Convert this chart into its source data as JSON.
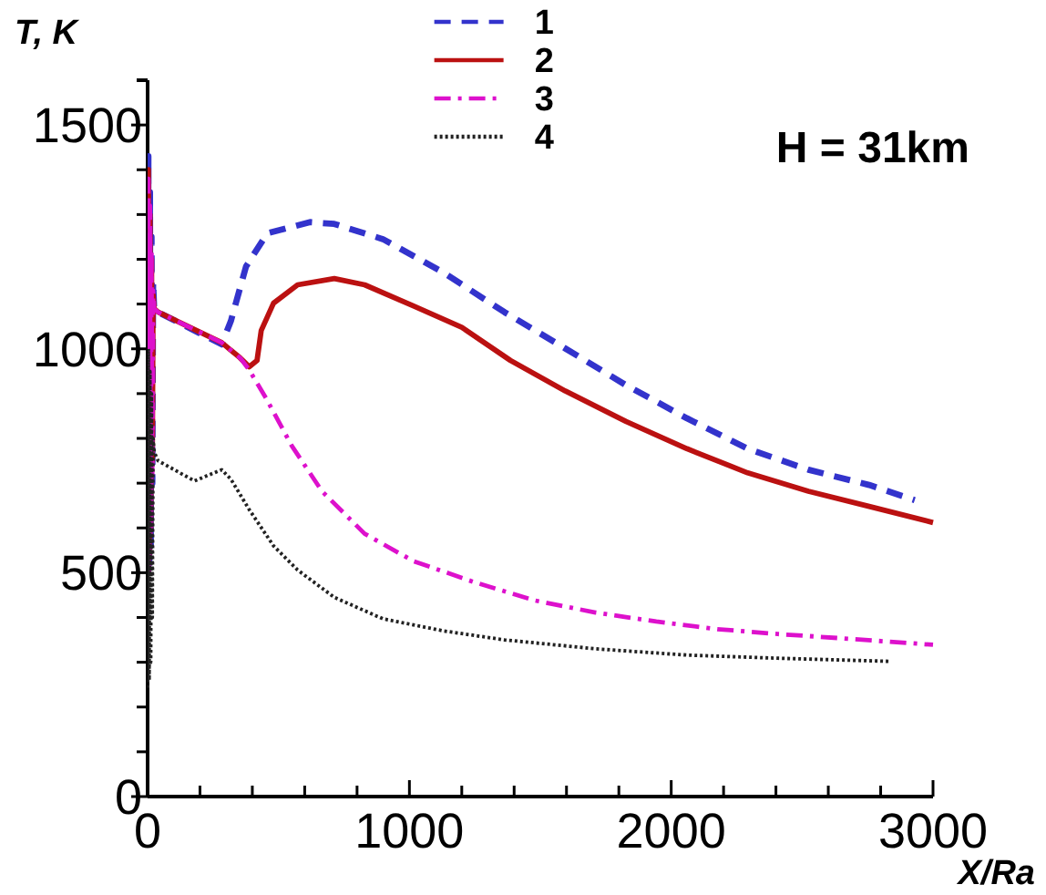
{
  "chart_data": {
    "type": "line",
    "xlabel": "X/Ra",
    "ylabel": "T, K",
    "annotations": [
      "H = 31km"
    ],
    "xlim": [
      0,
      3000
    ],
    "ylim": [
      0,
      1600
    ],
    "xticks": [
      0,
      {
        "value": 200,
        "label": null
      },
      {
        "value": 400,
        "label": null
      },
      {
        "value": 600,
        "label": null
      },
      {
        "value": 800,
        "label": null
      },
      1000,
      {
        "value": 1200,
        "label": null
      },
      {
        "value": 1400,
        "label": null
      },
      {
        "value": 1600,
        "label": null
      },
      {
        "value": 1800,
        "label": null
      },
      2000,
      {
        "value": 2200,
        "label": null
      },
      {
        "value": 2400,
        "label": null
      },
      {
        "value": 2600,
        "label": null
      },
      {
        "value": 2800,
        "label": null
      },
      3000
    ],
    "yticks": [
      0,
      {
        "value": 100,
        "label": null
      },
      {
        "value": 200,
        "label": null
      },
      {
        "value": 300,
        "label": null
      },
      {
        "value": 400,
        "label": null
      },
      500,
      {
        "value": 600,
        "label": null
      },
      {
        "value": 700,
        "label": null
      },
      {
        "value": 800,
        "label": null
      },
      {
        "value": 900,
        "label": null
      },
      1000,
      {
        "value": 1100,
        "label": null
      },
      {
        "value": 1200,
        "label": null
      },
      {
        "value": 1300,
        "label": null
      },
      {
        "value": 1400,
        "label": null
      },
      1500
    ],
    "grid": false,
    "legend": "top",
    "marker": "none",
    "series": [
      {
        "name": "1",
        "color": "#3333cc",
        "line_style": "dashed",
        "x": [
          0,
          3,
          6,
          9,
          12,
          15,
          18,
          21,
          25,
          40,
          283,
          318,
          376,
          457,
          620,
          713,
          899,
          1131,
          1363,
          1595,
          1827,
          2060,
          2292,
          2524,
          2756,
          2930
        ],
        "values": [
          600,
          1430,
          520,
          1350,
          560,
          1250,
          700,
          1150,
          1090,
          1082,
          1010,
          1062,
          1184,
          1258,
          1283,
          1279,
          1245,
          1170,
          1082,
          1001,
          919,
          845,
          777,
          730,
          696,
          662
        ]
      },
      {
        "name": "2",
        "color": "#bb1111",
        "line_style": "solid",
        "x": [
          0,
          3,
          6,
          9,
          12,
          15,
          18,
          21,
          25,
          40,
          283,
          353,
          388,
          418,
          434,
          481,
          573,
          713,
          829,
          1015,
          1200,
          1386,
          1595,
          1827,
          2060,
          2292,
          2524,
          2756,
          3000
        ],
        "values": [
          650,
          1400,
          540,
          1300,
          600,
          1200,
          750,
          1120,
          1090,
          1082,
          1014,
          980,
          960,
          974,
          1041,
          1102,
          1143,
          1157,
          1143,
          1096,
          1048,
          974,
          906,
          838,
          777,
          723,
          682,
          648,
          612
        ]
      },
      {
        "name": "3",
        "color": "#dd11cc",
        "line_style": "dashdot",
        "x": [
          0,
          3,
          6,
          9,
          12,
          15,
          18,
          21,
          25,
          40,
          283,
          353,
          388,
          457,
          550,
          666,
          829,
          1015,
          1247,
          1479,
          1711,
          1943,
          2176,
          2408,
          2640,
          3000
        ],
        "values": [
          520,
          1380,
          500,
          1320,
          580,
          1220,
          720,
          1130,
          1090,
          1082,
          1014,
          980,
          953,
          885,
          784,
          682,
          587,
          526,
          479,
          438,
          411,
          391,
          374,
          363,
          354,
          339
        ]
      },
      {
        "name": "4",
        "color": "#222222",
        "line_style": "dotted",
        "x": [
          0,
          3,
          6,
          9,
          12,
          15,
          18,
          21,
          25,
          40,
          179,
          283,
          318,
          388,
          481,
          573,
          713,
          899,
          1131,
          1363,
          1711,
          2060,
          2408,
          2838
        ],
        "values": [
          243,
          1000,
          260,
          950,
          300,
          900,
          400,
          800,
          770,
          750,
          705,
          730,
          709,
          641,
          560,
          506,
          445,
          397,
          370,
          350,
          330,
          316,
          309,
          302
        ]
      }
    ]
  }
}
